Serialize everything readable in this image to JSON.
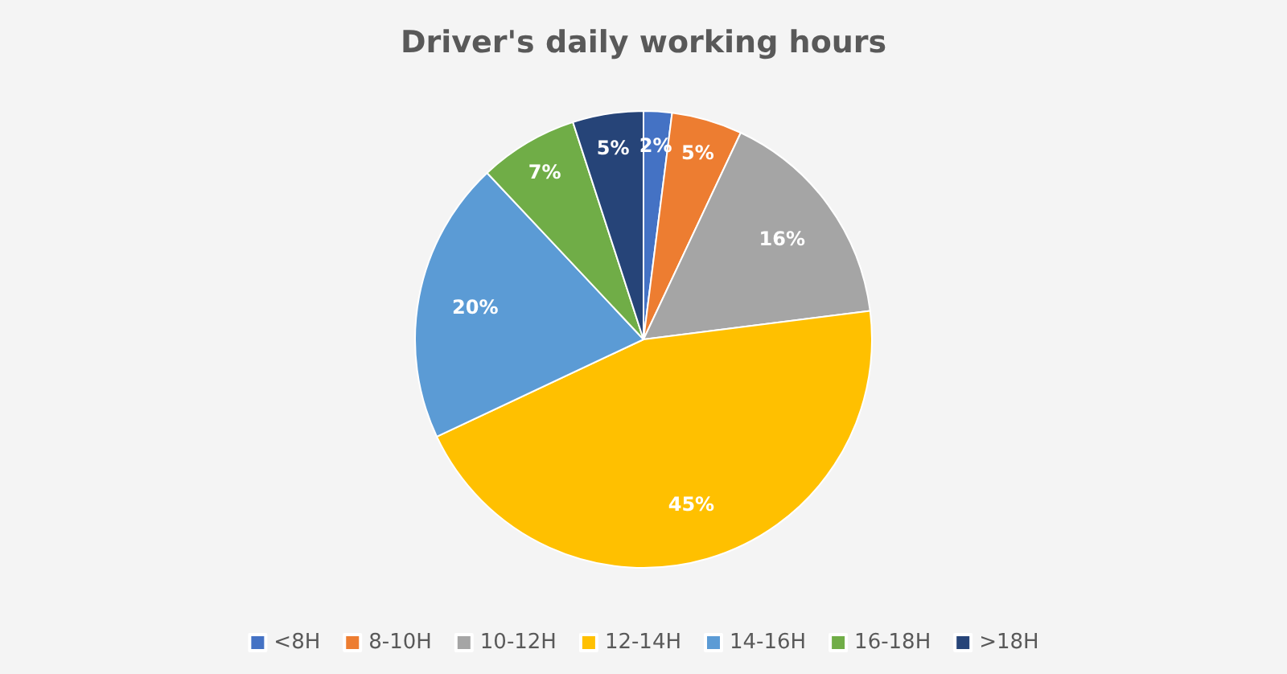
{
  "chart_data": {
    "type": "pie",
    "title": "Driver's daily working hours",
    "categories": [
      "<8H",
      "8-10H",
      "10-12H",
      "12-14H",
      "14-16H",
      "16-18H",
      ">18H"
    ],
    "values": [
      2,
      5,
      16,
      45,
      20,
      7,
      5
    ],
    "colors": [
      "#4472c4",
      "#ed7d31",
      "#a5a5a5",
      "#ffc000",
      "#5b9bd5",
      "#70ad47",
      "#264478"
    ],
    "value_labels": [
      "2%",
      "5%",
      "16%",
      "45%",
      "20%",
      "7%",
      "5%"
    ],
    "legend": "bottom"
  }
}
